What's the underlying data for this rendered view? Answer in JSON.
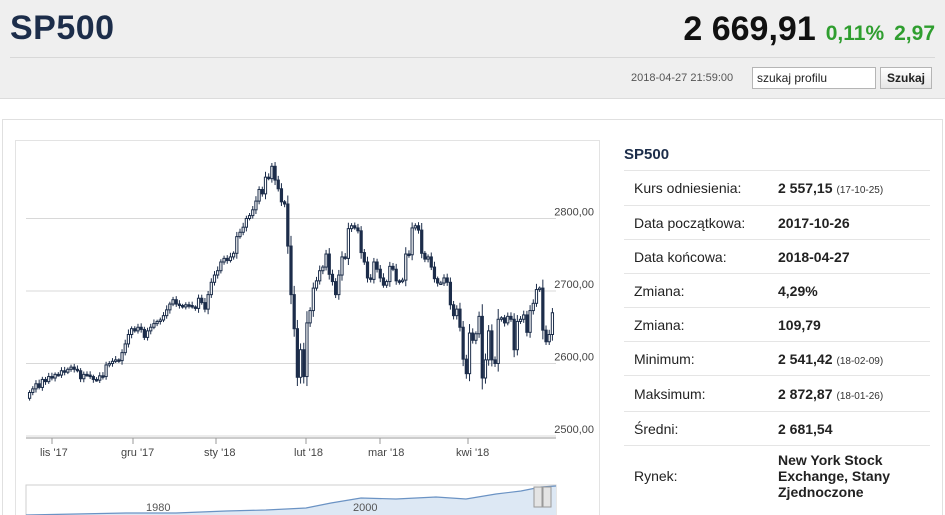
{
  "header": {
    "title": "SP500",
    "price": "2 669,91",
    "change_pct": "0,11%",
    "change_abs": "2,97",
    "timestamp": "2018-04-27 21:59:00",
    "search_value": "szukaj profilu",
    "search_button": "Szukaj",
    "up_color": "#2f9e2f"
  },
  "info": {
    "title": "SP500",
    "rows": [
      {
        "label": "Kurs odniesienia:",
        "value": "2 557,15",
        "sub": "(17-10-25)"
      },
      {
        "label": "Data początkowa:",
        "value": "2017-10-26",
        "sub": ""
      },
      {
        "label": "Data końcowa:",
        "value": "2018-04-27",
        "sub": ""
      },
      {
        "label": "Zmiana:",
        "value": "4,29%",
        "sub": ""
      },
      {
        "label": "Zmiana:",
        "value": "109,79",
        "sub": ""
      },
      {
        "label": "Minimum:",
        "value": "2 541,42",
        "sub": "(18-02-09)"
      },
      {
        "label": "Maksimum:",
        "value": "2 872,87",
        "sub": "(18-01-26)"
      },
      {
        "label": "Średni:",
        "value": "2 681,54",
        "sub": ""
      },
      {
        "label": "Rynek:",
        "value": "New York Stock Exchange, Stany Zjednoczone",
        "sub": ""
      }
    ]
  },
  "chart_data": {
    "type": "candlestick",
    "x_ticks": [
      "lis '17",
      "gru '17",
      "sty '18",
      "lut '18",
      "mar '18",
      "kwi '18"
    ],
    "y_ticks": [
      "2800,00",
      "2700,00",
      "2600,00",
      "2500,00"
    ],
    "ylim": [
      2500,
      2900
    ],
    "grid": true,
    "colors": {
      "up": "#ffffff",
      "down": "#1c2d4a",
      "grid": "#d8d8d8"
    },
    "close": [
      2560,
      2565,
      2572,
      2567,
      2578,
      2575,
      2582,
      2580,
      2585,
      2584,
      2590,
      2588,
      2592,
      2595,
      2592,
      2590,
      2579,
      2585,
      2584,
      2582,
      2578,
      2577,
      2583,
      2582,
      2598,
      2600,
      2603,
      2605,
      2604,
      2615,
      2627,
      2640,
      2648,
      2645,
      2650,
      2647,
      2636,
      2645,
      2650,
      2655,
      2658,
      2660,
      2666,
      2674,
      2682,
      2688,
      2682,
      2680,
      2678,
      2681,
      2680,
      2678,
      2676,
      2690,
      2684,
      2675,
      2695,
      2712,
      2722,
      2728,
      2740,
      2745,
      2742,
      2747,
      2752,
      2775,
      2781,
      2788,
      2800,
      2804,
      2812,
      2824,
      2840,
      2834,
      2857,
      2855,
      2872,
      2853,
      2841,
      2823,
      2820,
      2762,
      2695,
      2648,
      2581,
      2619,
      2582,
      2656,
      2673,
      2704,
      2714,
      2728,
      2733,
      2751,
      2723,
      2713,
      2695,
      2722,
      2747,
      2745,
      2786,
      2790,
      2787,
      2783,
      2753,
      2740,
      2718,
      2716,
      2740,
      2730,
      2718,
      2708,
      2713,
      2734,
      2730,
      2714,
      2713,
      2715,
      2751,
      2750,
      2787,
      2790,
      2784,
      2752,
      2744,
      2747,
      2733,
      2717,
      2711,
      2711,
      2718,
      2712,
      2681,
      2666,
      2675,
      2650,
      2606,
      2586,
      2642,
      2632,
      2641,
      2665,
      2580,
      2605,
      2645,
      2605,
      2600,
      2661,
      2663,
      2656,
      2665,
      2661,
      2619,
      2658,
      2661,
      2667,
      2643,
      2673,
      2683,
      2702,
      2704,
      2646,
      2630,
      2640,
      2670
    ],
    "dates": [
      "2017-10-26",
      "2018-04-27"
    ],
    "navigator": {
      "labels": [
        "1980",
        "2000"
      ]
    }
  }
}
